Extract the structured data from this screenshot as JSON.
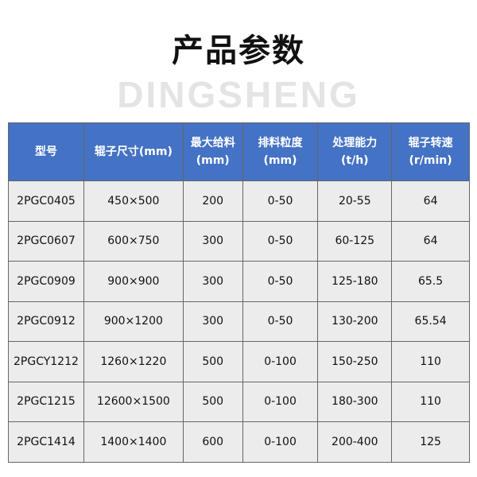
{
  "title": "产品参数",
  "watermark": "DINGSHENG",
  "table": {
    "headers": [
      [
        "型号",
        ""
      ],
      [
        "辊子尺寸(mm)",
        ""
      ],
      [
        "最大给料",
        "(mm)"
      ],
      [
        "排料粒度",
        "(mm)"
      ],
      [
        "处理能力",
        "(t/h)"
      ],
      [
        "辊子转速",
        "(r/min)"
      ]
    ],
    "rows": [
      [
        "2PGC0405",
        "450×500",
        "200",
        "0-50",
        "20-55",
        "64"
      ],
      [
        "2PGC0607",
        "600×750",
        "300",
        "0-50",
        "60-125",
        "64"
      ],
      [
        "2PGC0909",
        "900×900",
        "300",
        "0-50",
        "125-180",
        "65.5"
      ],
      [
        "2PGC0912",
        "900×1200",
        "300",
        "0-50",
        "130-200",
        "65.54"
      ],
      [
        "2PGCY1212",
        "1260×1220",
        "500",
        "0-100",
        "150-250",
        "110"
      ],
      [
        "2PGC1215",
        "12600×1500",
        "500",
        "0-100",
        "180-300",
        "110"
      ],
      [
        "2PGC1414",
        "1400×1400",
        "600",
        "0-100",
        "200-400",
        "125"
      ]
    ]
  },
  "colors": {
    "header_bg": "#4472c4",
    "row_bg": "#ececec"
  }
}
